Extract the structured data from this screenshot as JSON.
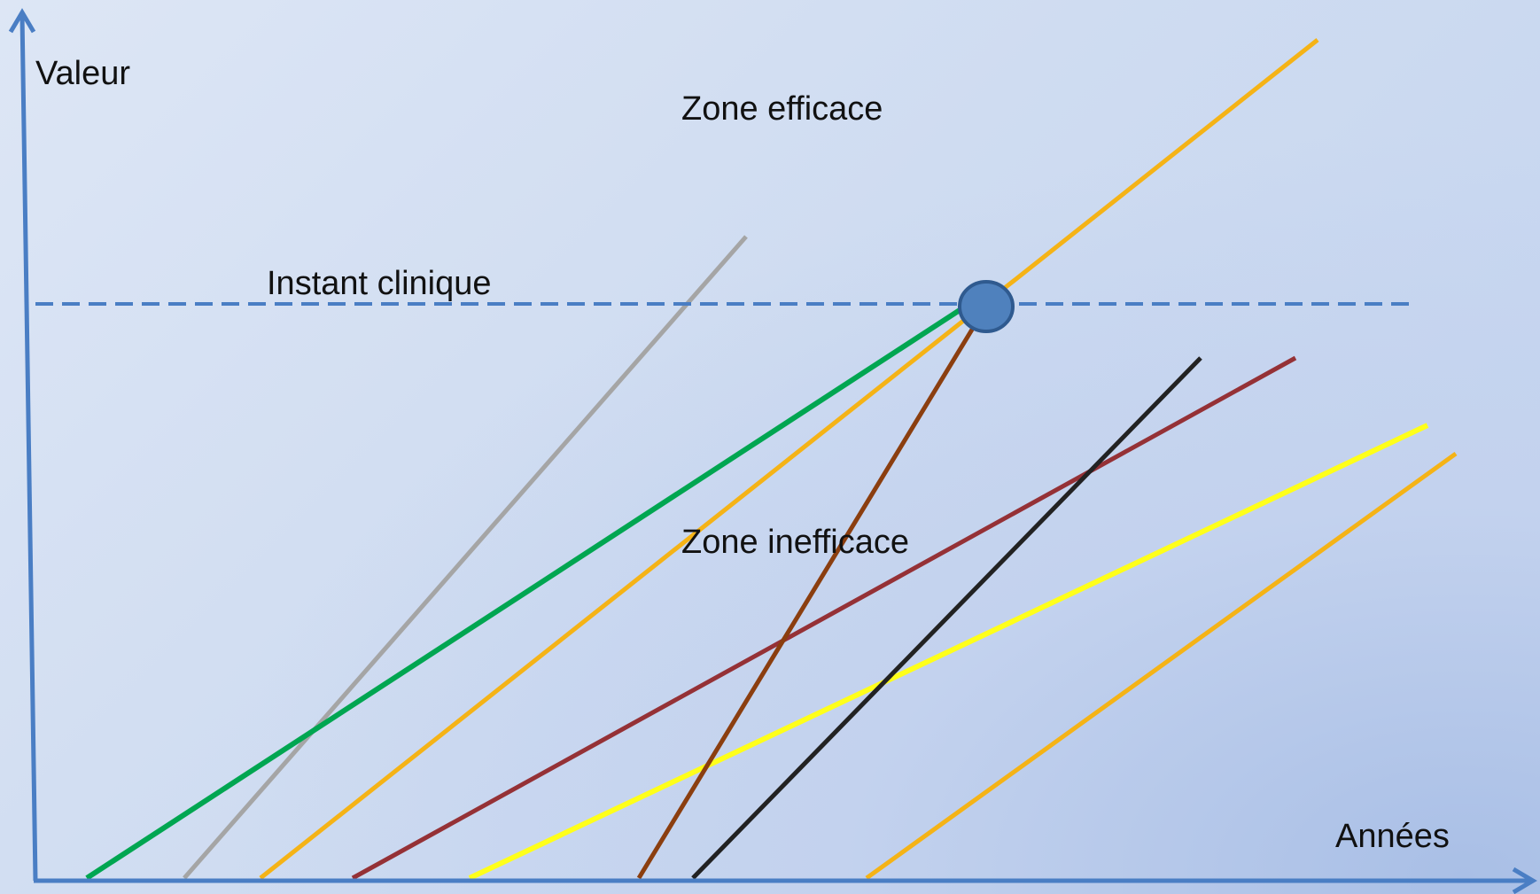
{
  "labels": {
    "y_axis": "Valeur",
    "x_axis": "Années",
    "threshold": "Instant clinique",
    "zone_above": "Zone efficace",
    "zone_below": "Zone inefficace"
  },
  "colors": {
    "axis": "#4a7ec4",
    "threshold": "#4a7ec4",
    "marker_fill": "#4f81bd",
    "marker_stroke": "#2f5a8f",
    "lines": {
      "gray": "#a5a5a5",
      "green": "#00a651",
      "orange_main": "#f5b316",
      "brown": "#8b3e0f",
      "maroon": "#953136",
      "black": "#222222",
      "yellow": "#ffff1a",
      "orange_low": "#f5b316"
    }
  }
}
